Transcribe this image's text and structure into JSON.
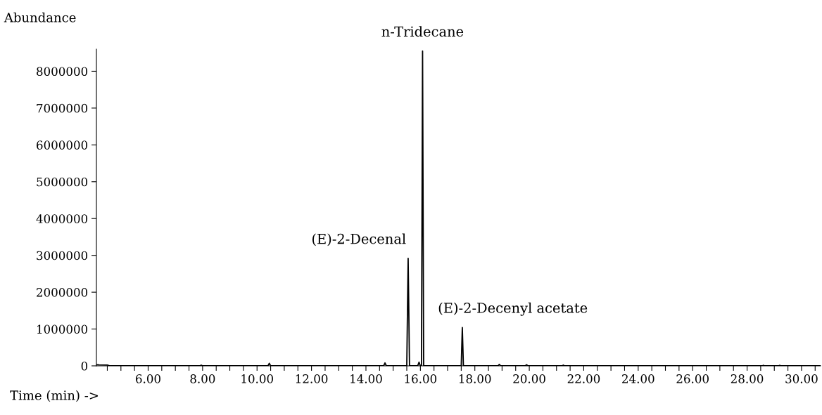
{
  "chart_data": {
    "type": "line",
    "xlabel": "Time (min) ->",
    "ylabel": "Abundance",
    "x": [
      4.12,
      4.2,
      4.5,
      4.6,
      7.9,
      7.95,
      8.0,
      10.4,
      10.45,
      10.5,
      14.65,
      14.7,
      14.75,
      15.5,
      15.55,
      15.6,
      15.9,
      15.95,
      16.0,
      16.04,
      16.08,
      16.12,
      17.5,
      17.54,
      17.58,
      18.85,
      18.9,
      18.95,
      19.85,
      19.9,
      19.95,
      21.2,
      21.25,
      21.3,
      28.55,
      28.6,
      28.65,
      29.15,
      29.2,
      29.25,
      30.7
    ],
    "series": [
      {
        "color": "#000000",
        "values": [
          30000,
          25000,
          20000,
          0,
          0,
          20000,
          0,
          0,
          70000,
          0,
          0,
          80000,
          0,
          0,
          2920000,
          0,
          0,
          100000,
          0,
          0,
          8550000,
          0,
          0,
          1040000,
          0,
          0,
          40000,
          0,
          0,
          30000,
          0,
          0,
          20000,
          0,
          0,
          15000,
          0,
          0,
          15000,
          0,
          0
        ]
      }
    ],
    "xlim": [
      4.1,
      30.7
    ],
    "ylim": [
      0,
      8600000
    ],
    "xticks": [
      {
        "value": 4.5,
        "label": null
      },
      {
        "value": 5.0,
        "label": null
      },
      {
        "value": 5.5,
        "label": null
      },
      {
        "value": 6,
        "label": "6.00"
      },
      {
        "value": 6.5,
        "label": null
      },
      {
        "value": 7.0,
        "label": null
      },
      {
        "value": 7.5,
        "label": null
      },
      {
        "value": 8,
        "label": "8.00"
      },
      {
        "value": 8.5,
        "label": null
      },
      {
        "value": 9.0,
        "label": null
      },
      {
        "value": 9.5,
        "label": null
      },
      {
        "value": 10,
        "label": "10.00"
      },
      {
        "value": 10.5,
        "label": null
      },
      {
        "value": 11.0,
        "label": null
      },
      {
        "value": 11.5,
        "label": null
      },
      {
        "value": 12,
        "label": "12.00"
      },
      {
        "value": 12.5,
        "label": null
      },
      {
        "value": 13.0,
        "label": null
      },
      {
        "value": 13.5,
        "label": null
      },
      {
        "value": 14,
        "label": "14.00"
      },
      {
        "value": 14.5,
        "label": null
      },
      {
        "value": 15.0,
        "label": null
      },
      {
        "value": 15.5,
        "label": null
      },
      {
        "value": 16,
        "label": "16.00"
      },
      {
        "value": 16.5,
        "label": null
      },
      {
        "value": 17.0,
        "label": null
      },
      {
        "value": 17.5,
        "label": null
      },
      {
        "value": 18,
        "label": "18.00"
      },
      {
        "value": 18.5,
        "label": null
      },
      {
        "value": 19.0,
        "label": null
      },
      {
        "value": 19.5,
        "label": null
      },
      {
        "value": 20,
        "label": "20.00"
      },
      {
        "value": 20.5,
        "label": null
      },
      {
        "value": 21.0,
        "label": null
      },
      {
        "value": 21.5,
        "label": null
      },
      {
        "value": 22,
        "label": "22.00"
      },
      {
        "value": 22.5,
        "label": null
      },
      {
        "value": 23.0,
        "label": null
      },
      {
        "value": 23.5,
        "label": null
      },
      {
        "value": 24,
        "label": "24.00"
      },
      {
        "value": 24.5,
        "label": null
      },
      {
        "value": 25.0,
        "label": null
      },
      {
        "value": 25.5,
        "label": null
      },
      {
        "value": 26,
        "label": "26.00"
      },
      {
        "value": 26.5,
        "label": null
      },
      {
        "value": 27.0,
        "label": null
      },
      {
        "value": 27.5,
        "label": null
      },
      {
        "value": 28,
        "label": "28.00"
      },
      {
        "value": 28.5,
        "label": null
      },
      {
        "value": 29.0,
        "label": null
      },
      {
        "value": 29.5,
        "label": null
      },
      {
        "value": 30,
        "label": "30.00"
      },
      {
        "value": 30.5,
        "label": null
      }
    ],
    "yticks": [
      0,
      1000000,
      2000000,
      3000000,
      4000000,
      5000000,
      6000000,
      7000000,
      8000000
    ],
    "annotations": [
      {
        "text": "(E)-2-Decenal",
        "x": 15.55,
        "y": 2920000
      },
      {
        "text": "n-Tridecane",
        "x": 16.08,
        "y": 8550000
      },
      {
        "text": "(E)-2-Decenyl acetate",
        "x": 17.54,
        "y": 1040000
      }
    ],
    "grid": false,
    "legend": false
  }
}
